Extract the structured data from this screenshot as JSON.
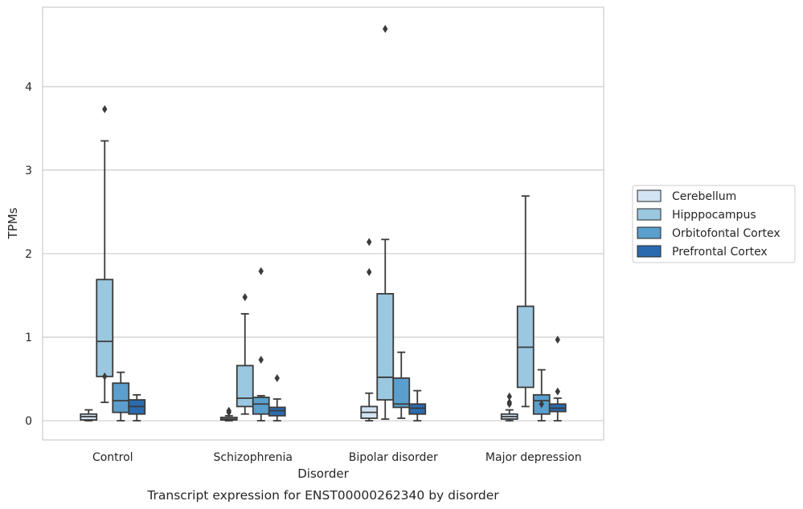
{
  "chart_data": {
    "type": "box",
    "title": "Transcript expression for ENST00000262340 by disorder",
    "xlabel": "Disorder",
    "ylabel": "TPMs",
    "ylim": [
      -0.23,
      4.95
    ],
    "yticks": [
      0,
      1,
      2,
      3,
      4
    ],
    "grid": "horizontal",
    "legend_position": "right",
    "categories": [
      "Control",
      "Schizophrenia",
      "Bipolar disorder",
      "Major depression"
    ],
    "series": [
      {
        "name": "Cerebellum",
        "color": "#d2e3f3",
        "boxes": [
          {
            "whisker_low": 0.0,
            "q1": 0.01,
            "median": 0.05,
            "q3": 0.08,
            "whisker_high": 0.13,
            "outliers": []
          },
          {
            "whisker_low": 0.0,
            "q1": 0.01,
            "median": 0.02,
            "q3": 0.04,
            "whisker_high": 0.06,
            "outliers": [
              0.1,
              0.12
            ]
          },
          {
            "whisker_low": 0.0,
            "q1": 0.03,
            "median": 0.1,
            "q3": 0.17,
            "whisker_high": 0.33,
            "outliers": [
              1.78,
              2.14
            ]
          },
          {
            "whisker_low": 0.0,
            "q1": 0.02,
            "median": 0.05,
            "q3": 0.08,
            "whisker_high": 0.13,
            "outliers": [
              0.2,
              0.22,
              0.29
            ]
          }
        ]
      },
      {
        "name": "Hipppocampus",
        "color": "#9ac8e0",
        "boxes": [
          {
            "whisker_low": 0.22,
            "q1": 0.53,
            "median": 0.95,
            "q3": 1.69,
            "whisker_high": 3.35,
            "outliers": [
              0.53,
              3.73
            ]
          },
          {
            "whisker_low": 0.08,
            "q1": 0.17,
            "median": 0.27,
            "q3": 0.66,
            "whisker_high": 1.28,
            "outliers": [
              1.48
            ]
          },
          {
            "whisker_low": 0.02,
            "q1": 0.25,
            "median": 0.52,
            "q3": 1.52,
            "whisker_high": 2.17,
            "outliers": [
              4.69
            ]
          },
          {
            "whisker_low": 0.17,
            "q1": 0.4,
            "median": 0.88,
            "q3": 1.37,
            "whisker_high": 2.69,
            "outliers": []
          }
        ]
      },
      {
        "name": "Orbitofontal Cortex",
        "color": "#5a9fcd",
        "boxes": [
          {
            "whisker_low": 0.0,
            "q1": 0.1,
            "median": 0.24,
            "q3": 0.45,
            "whisker_high": 0.58,
            "outliers": []
          },
          {
            "whisker_low": 0.0,
            "q1": 0.08,
            "median": 0.2,
            "q3": 0.28,
            "whisker_high": 0.3,
            "outliers": [
              0.73,
              1.79
            ]
          },
          {
            "whisker_low": 0.03,
            "q1": 0.16,
            "median": 0.2,
            "q3": 0.51,
            "whisker_high": 0.82,
            "outliers": []
          },
          {
            "whisker_low": 0.0,
            "q1": 0.08,
            "median": 0.24,
            "q3": 0.31,
            "whisker_high": 0.61,
            "outliers": [
              0.2
            ]
          }
        ]
      },
      {
        "name": "Prefrontal Cortex",
        "color": "#2a6bb0",
        "boxes": [
          {
            "whisker_low": 0.0,
            "q1": 0.08,
            "median": 0.17,
            "q3": 0.25,
            "whisker_high": 0.31,
            "outliers": []
          },
          {
            "whisker_low": 0.0,
            "q1": 0.06,
            "median": 0.12,
            "q3": 0.16,
            "whisker_high": 0.26,
            "outliers": [
              0.51
            ]
          },
          {
            "whisker_low": 0.0,
            "q1": 0.08,
            "median": 0.15,
            "q3": 0.2,
            "whisker_high": 0.36,
            "outliers": []
          },
          {
            "whisker_low": 0.0,
            "q1": 0.11,
            "median": 0.15,
            "q3": 0.2,
            "whisker_high": 0.27,
            "outliers": [
              0.35,
              0.97
            ]
          }
        ]
      }
    ]
  }
}
